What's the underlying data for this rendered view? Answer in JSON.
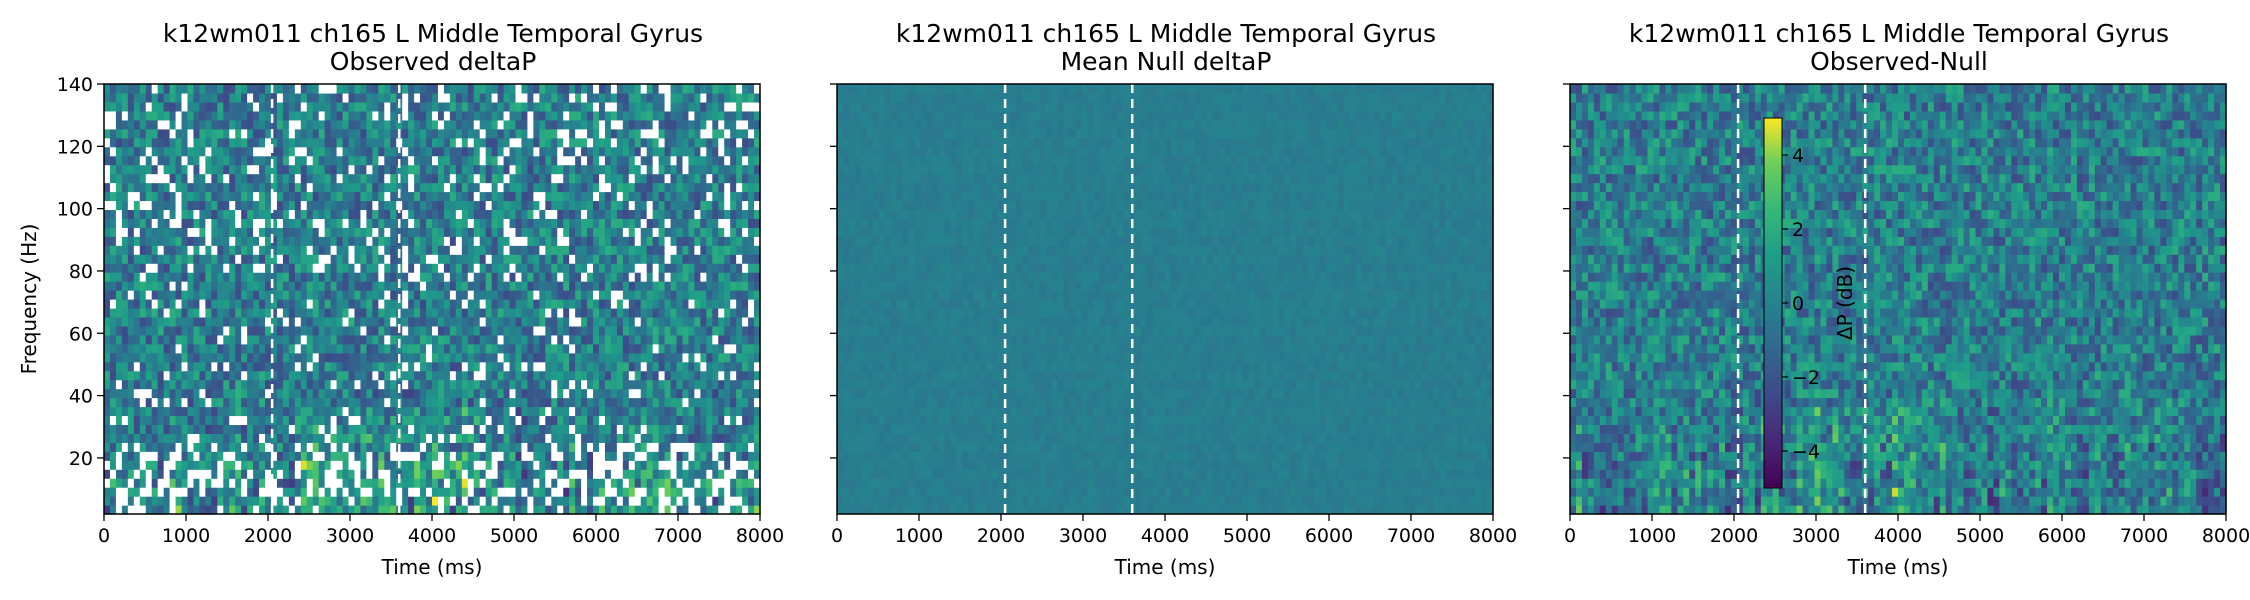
{
  "chart_data": [
    {
      "type": "heatmap",
      "title": "k12wm011 ch165 L Middle Temporal Gyrus",
      "subtitle": "Observed deltaP",
      "xlabel": "Time (ms)",
      "ylabel": "Frequency (Hz)",
      "xlim": [
        0,
        8000
      ],
      "ylim": [
        2,
        140
      ],
      "xticks": [
        "0",
        "1000",
        "2000",
        "3000",
        "4000",
        "5000",
        "6000",
        "7000",
        "8000"
      ],
      "yticks": [
        "20",
        "40",
        "60",
        "80",
        "100",
        "120",
        "140"
      ],
      "markers_ms": [
        2050,
        3600
      ],
      "colormap": "viridis",
      "pattern": "noisy spectrogram, many masked (white) pixels, bright bursts near 2500-4500 ms at low frequency"
    },
    {
      "type": "heatmap",
      "title": "k12wm011 ch165 L Middle Temporal Gyrus",
      "subtitle": "Mean Null deltaP",
      "xlabel": "Time (ms)",
      "ylabel": "",
      "xlim": [
        0,
        8000
      ],
      "ylim": [
        2,
        140
      ],
      "xticks": [
        "0",
        "1000",
        "2000",
        "3000",
        "4000",
        "5000",
        "6000",
        "7000",
        "8000"
      ],
      "yticks": [
        "",
        "",
        "",
        "",
        "",
        "",
        ""
      ],
      "markers_ms": [
        2050,
        3600
      ],
      "colormap": "viridis",
      "pattern": "nearly uniform near 0 dB"
    },
    {
      "type": "heatmap",
      "title": "k12wm011 ch165 L Middle Temporal Gyrus",
      "subtitle": "Observed-Null",
      "xlabel": "Time (ms)",
      "ylabel": "",
      "xlim": [
        0,
        8000
      ],
      "ylim": [
        2,
        140
      ],
      "xticks": [
        "0",
        "1000",
        "2000",
        "3000",
        "4000",
        "5000",
        "6000",
        "7000",
        "8000"
      ],
      "yticks": [
        "",
        "",
        "",
        "",
        "",
        "",
        ""
      ],
      "markers_ms": [
        2050,
        3600
      ],
      "colormap": "viridis",
      "pattern": "noisy difference map, bright vertical streaks at low frequency",
      "colorbar": {
        "label": "ΔP (dB)",
        "range": [
          -5,
          5
        ],
        "ticks": [
          "4",
          "2",
          "0",
          "−2",
          "−4"
        ],
        "tick_values": [
          4,
          2,
          0,
          -2,
          -4
        ],
        "placement": "inset, left of center"
      }
    }
  ]
}
